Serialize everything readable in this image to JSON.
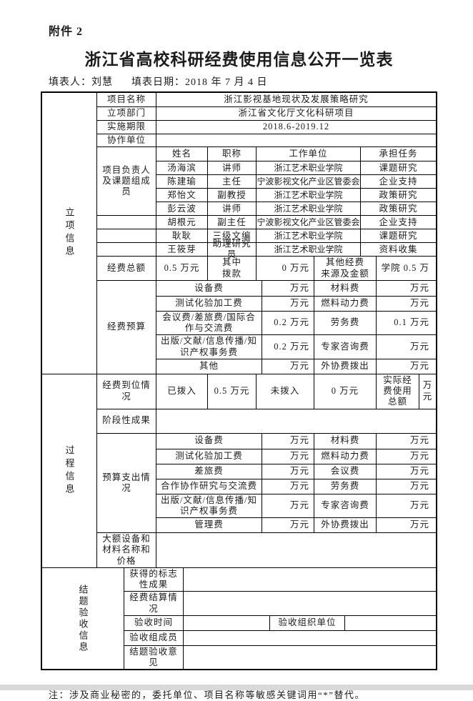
{
  "page": {
    "attachment": "附件 2",
    "title": "浙江省高校科研经费使用信息公开一览表",
    "filler_label": "填表人：",
    "filler_name": "刘慧",
    "date_label": "填表日期：",
    "date_value": "2018 年 7 月 4 日",
    "note": "注：涉及商业秘密的，委托单位、项目名称等敏感关键词用“*”替代。"
  },
  "s1": {
    "vlabel": "立项信息",
    "r1": {
      "label": "项目名称",
      "value": "浙江影视基地现状及发展策略研究"
    },
    "r2": {
      "label": "立项部门",
      "value": "浙江省文化厅文化科研项目"
    },
    "r3": {
      "label": "实施期限",
      "value": "2018.6-2019.12"
    },
    "r4": {
      "label": "协作单位",
      "value": ""
    },
    "team": {
      "label": "项目负责人及课题组成员",
      "headers": {
        "name": "姓名",
        "title": "职称",
        "org": "工作单位",
        "task": "承担任务"
      },
      "members": [
        {
          "name": "汤海滨",
          "title": "讲师",
          "org": "浙江艺术职业学院",
          "task": "课题研究"
        },
        {
          "name": "陈建瑜",
          "title": "主任",
          "org": "宁波影视文化产业区管委会",
          "task": "企业支持"
        },
        {
          "name": "郑怡文",
          "title": "副教授",
          "org": "浙江艺术职业学院",
          "task": "政策研究"
        },
        {
          "name": "彭云波",
          "title": "讲师",
          "org": "浙江艺术职业学院",
          "task": "政策研究"
        },
        {
          "name": "胡根元",
          "title": "副主任",
          "org": "宁波影视文化产业区管委会",
          "task": "企业支持"
        },
        {
          "name": "耿耿",
          "title": "三级文编",
          "org": "浙江艺术职业学院",
          "task": "课题研究"
        },
        {
          "name": "王筱芽",
          "title": "助理研究员",
          "org": "浙江艺术职业学院",
          "task": "资料收集"
        }
      ]
    },
    "total": {
      "label": "经费总额",
      "v1": "0.5 万元",
      "k2": "其中\n拨款",
      "v2": "0 万元",
      "k3": "其他经费\n来源及金额",
      "v3": "学院 0.5 万"
    },
    "budget": {
      "label": "经费预算",
      "rows": [
        {
          "i1": "设备费",
          "a1": "万元",
          "i2": "材料费",
          "a2": "万元"
        },
        {
          "i1": "测试化验加工费",
          "a1": "万元",
          "i2": "燃料动力费",
          "a2": "万元"
        },
        {
          "i1": "会议费/差旅费/国际合作与交流费",
          "a1": "0.2 万元",
          "i2": "劳务费",
          "a2": "0.1 万元"
        },
        {
          "i1": "出版/文献/信息传播/知识产权事务费",
          "a1": "0.2 万元",
          "i2": "专家咨询费",
          "a2": "万元"
        },
        {
          "i1": "其他",
          "a1": "万元",
          "i2": "外协费拨出",
          "a2": "万元"
        }
      ]
    }
  },
  "s2": {
    "vlabel": "过程信息",
    "arrival": {
      "label": "经费到位情况",
      "k1": "已拨入",
      "v1": "0.5 万元",
      "k2": "未拨入",
      "v2": "0 万元",
      "k3": "实际经费使用总额",
      "v3": "万元"
    },
    "stage": {
      "label": "阶段性成果",
      "value": ""
    },
    "spend": {
      "label": "预算支出情况",
      "rows": [
        {
          "i1": "设备费",
          "a1": "万元",
          "i2": "材料费",
          "a2": "万元"
        },
        {
          "i1": "测试化验加工费",
          "a1": "万元",
          "i2": "燃料动力费",
          "a2": "万元"
        },
        {
          "i1": "差旅费",
          "a1": "万元",
          "i2": "会议费",
          "a2": "万元"
        },
        {
          "i1": "合作协作研究与交流费",
          "a1": "万元",
          "i2": "劳务费",
          "a2": "万元"
        },
        {
          "i1": "出版/文献/信息传播/知识产权事务费",
          "a1": "万元",
          "i2": "专家咨询费",
          "a2": "万元"
        },
        {
          "i1": "管理费",
          "a1": "万元",
          "i2": "外协费拨出",
          "a2": "万元"
        }
      ]
    },
    "equip": {
      "label": "大额设备和材料名称和价格",
      "value": ""
    }
  },
  "s3": {
    "vlabel": "结题验收信息",
    "r1": {
      "label": "获得的标志性成果",
      "value": ""
    },
    "r2": {
      "label": "经费结算情况",
      "value": ""
    },
    "accept": {
      "label": "验收时间",
      "v1": "",
      "k2": "验收组织单位",
      "v2": ""
    },
    "r4": {
      "label": "验收组成员",
      "value": ""
    },
    "r5": {
      "label": "结题验收意见",
      "value": ""
    }
  }
}
